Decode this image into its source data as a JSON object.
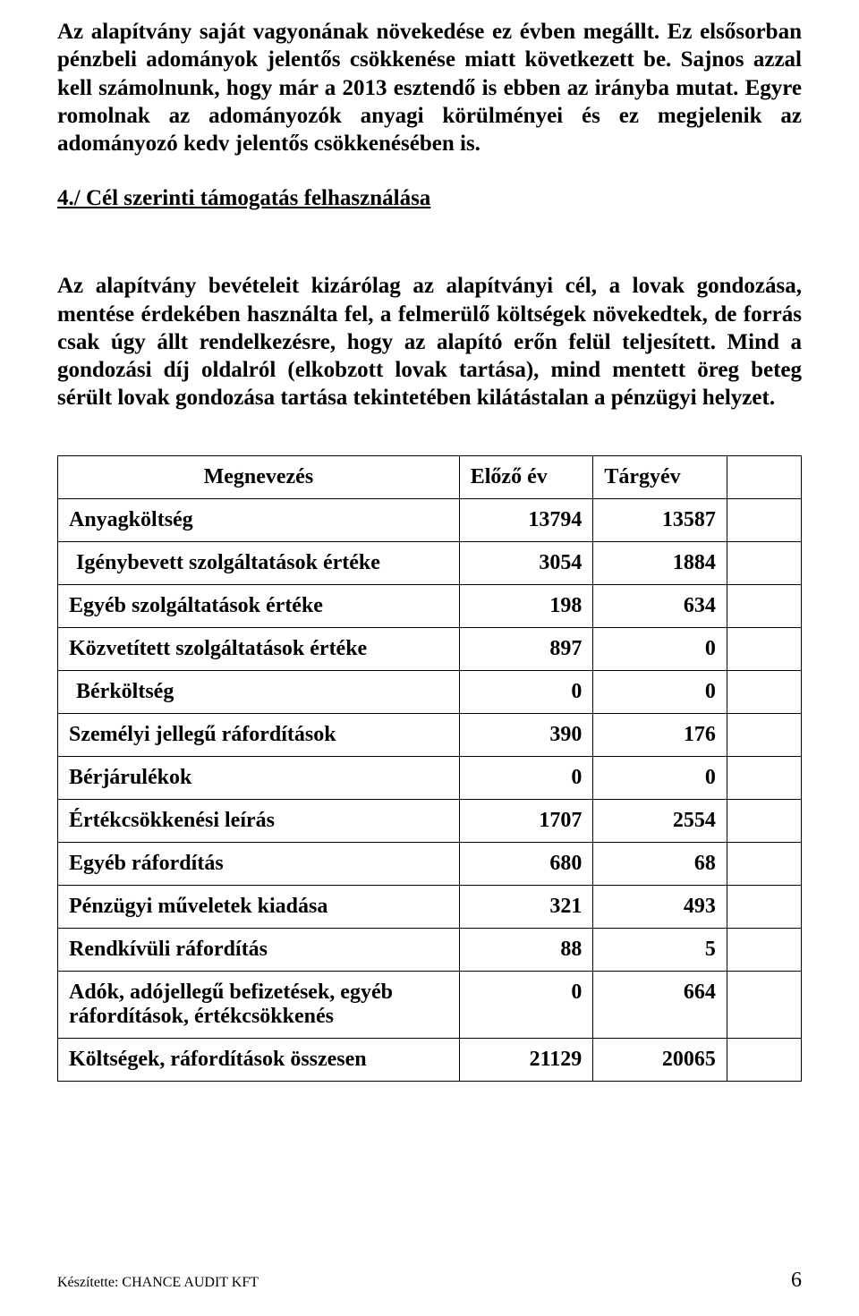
{
  "paragraph1": "Az alapítvány  saját vagyonának növekedése ez évben megállt. Ez elsősorban pénzbeli adományok jelentős csökkenése miatt következett be. Sajnos azzal kell számolnunk, hogy  már a 2013 esztendő is ebben az irányba mutat. Egyre romolnak az adományozók anyagi körülményei és ez megjelenik az adományozó kedv  jelentős csökkenésében is.",
  "heading": "4./ Cél szerinti támogatás felhasználása",
  "paragraph2": "Az alapítvány bevételeit kizárólag az alapítványi cél, a  lovak gondozása, mentése  érdekében használta fel, a felmerülő költségek  növekedtek, de forrás csak úgy állt  rendelkezésre, hogy az alapító erőn felül teljesített. Mind a gondozási díj oldalról (elkobzott lovak tartása), mind mentett öreg beteg sérült lovak gondozása tartása tekintetében kilátástalan a pénzügyi helyzet.",
  "table": {
    "headers": {
      "name": "Megnevezés",
      "prev": "Előző év",
      "curr": "Tárgyév"
    },
    "rows": [
      {
        "label": "Anyagköltség",
        "prev": "13794",
        "curr": "13587",
        "indent": false
      },
      {
        "label": "Igénybevett szolgáltatások értéke",
        "prev": "3054",
        "curr": "1884",
        "indent": true
      },
      {
        "label": "Egyéb szolgáltatások értéke",
        "prev": "198",
        "curr": "634",
        "indent": false
      },
      {
        "label": "Közvetített szolgáltatások értéke",
        "prev": "897",
        "curr": "0",
        "indent": false
      },
      {
        "label": "Bérköltség",
        "prev": "0",
        "curr": "0",
        "indent": true
      },
      {
        "label": "Személyi jellegű ráfordítások",
        "prev": "390",
        "curr": "176",
        "indent": false
      },
      {
        "label": "Bérjárulékok",
        "prev": "0",
        "curr": "0",
        "indent": false
      },
      {
        "label": "Értékcsökkenési leírás",
        "prev": "1707",
        "curr": "2554",
        "indent": false
      },
      {
        "label": "Egyéb ráfordítás",
        "prev": "680",
        "curr": "68",
        "indent": false
      },
      {
        "label": "Pénzügyi műveletek kiadása",
        "prev": "321",
        "curr": "493",
        "indent": false
      },
      {
        "label": "Rendkívüli ráfordítás",
        "prev": "88",
        "curr": "5",
        "indent": false
      },
      {
        "label": "Adók, adójellegű befizetések, egyéb ráfordítások, értékcsökkenés",
        "prev": "0",
        "curr": "664",
        "indent": false
      },
      {
        "label": "Költségek, ráfordítások összesen",
        "prev": "21129",
        "curr": "20065",
        "indent": false
      }
    ]
  },
  "footer": {
    "left": "Készítette: CHANCE AUDIT KFT",
    "pageNumber": "6"
  },
  "colors": {
    "text": "#000000",
    "background": "#ffffff",
    "border": "#000000"
  }
}
